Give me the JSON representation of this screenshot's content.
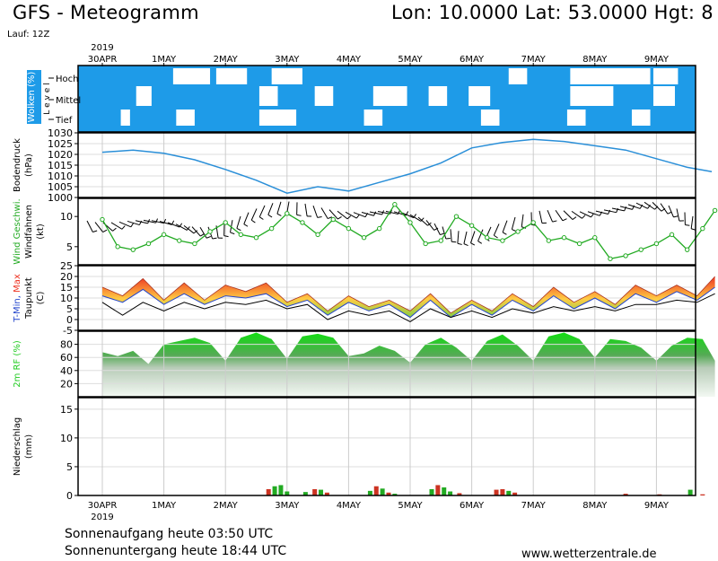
{
  "header": {
    "title": "GFS - Meteogramm",
    "location": "Lon: 10.0000  Lat: 53.0000  Hgt: 8",
    "run": "Lauf: 12Z"
  },
  "colors": {
    "cloud_bg": "#1e9be8",
    "cloud": "#ffffff",
    "pressure_line": "#2a8fd8",
    "wind_speed": "#22aa22",
    "tmax_fill_hot": "#ee3322",
    "tmax_fill_mid": "#ffcc44",
    "tmin_line": "#2244cc",
    "dewpoint_line": "#000000",
    "humidity_fill": "#22cc22",
    "precip_red": "#cc3322",
    "precip_green": "#22aa22"
  },
  "footer": {
    "sunrise": "Sonnenaufgang heute 03:50 UTC",
    "sunset": "Sonnenuntergang heute 18:44 UTC",
    "credit": "www.wetterzentrale.de"
  },
  "chart_data": [
    {
      "type": "heatmap",
      "panel": "clouds",
      "ylabel": "Wolken (%)",
      "ylabel2": "L e v e l",
      "levels": [
        "Hoch",
        "Mittel",
        "Tief"
      ],
      "x_dates": [
        "30APR",
        "1MAY",
        "2MAY",
        "3MAY",
        "4MAY",
        "5MAY",
        "6MAY",
        "7MAY",
        "8MAY",
        "9MAY"
      ],
      "year_label": "2019",
      "clear_gaps": [
        {
          "level": "Hoch",
          "from": 1.15,
          "to": 1.75
        },
        {
          "level": "Hoch",
          "from": 1.85,
          "to": 2.35
        },
        {
          "level": "Hoch",
          "from": 2.75,
          "to": 3.25
        },
        {
          "level": "Hoch",
          "from": 6.6,
          "to": 6.9
        },
        {
          "level": "Hoch",
          "from": 7.6,
          "to": 8.9
        },
        {
          "level": "Hoch",
          "from": 8.95,
          "to": 9.35
        },
        {
          "level": "Mittel",
          "from": 0.55,
          "to": 0.8
        },
        {
          "level": "Mittel",
          "from": 2.55,
          "to": 2.85
        },
        {
          "level": "Mittel",
          "from": 3.45,
          "to": 3.75
        },
        {
          "level": "Mittel",
          "from": 4.4,
          "to": 4.95
        },
        {
          "level": "Mittel",
          "from": 5.3,
          "to": 5.6
        },
        {
          "level": "Mittel",
          "from": 5.95,
          "to": 6.3
        },
        {
          "level": "Mittel",
          "from": 7.6,
          "to": 8.3
        },
        {
          "level": "Mittel",
          "from": 8.95,
          "to": 9.3
        },
        {
          "level": "Tief",
          "from": 0.3,
          "to": 0.45
        },
        {
          "level": "Tief",
          "from": 1.2,
          "to": 1.5
        },
        {
          "level": "Tief",
          "from": 2.55,
          "to": 3.15
        },
        {
          "level": "Tief",
          "from": 4.25,
          "to": 4.55
        },
        {
          "level": "Tief",
          "from": 6.15,
          "to": 6.45
        },
        {
          "level": "Tief",
          "from": 7.55,
          "to": 7.85
        },
        {
          "level": "Tief",
          "from": 8.6,
          "to": 8.9
        }
      ]
    },
    {
      "type": "line",
      "panel": "pressure",
      "ylabel": "Bodendruck",
      "ylabel2": "(hPa)",
      "ylim": [
        1000,
        1030
      ],
      "yticks": [
        1000,
        1005,
        1010,
        1015,
        1020,
        1025,
        1030
      ],
      "grid": true,
      "x": [
        0,
        0.5,
        1,
        1.5,
        2,
        2.5,
        3,
        3.5,
        4,
        4.5,
        5,
        5.5,
        6,
        6.5,
        7,
        7.5,
        8,
        8.5,
        9,
        9.5,
        9.9
      ],
      "values": [
        1021,
        1022,
        1020.5,
        1017.5,
        1013,
        1008,
        1002,
        1005,
        1003,
        1007,
        1011,
        1016,
        1023,
        1025.5,
        1027,
        1026,
        1024,
        1022,
        1018,
        1014,
        1012
      ]
    },
    {
      "type": "line",
      "panel": "wind",
      "ylabel": "Wind Geschwi.",
      "ylabel2": "Windfahnen",
      "ylabel3": "(kt)",
      "ylim": [
        2,
        13
      ],
      "yticks": [
        5,
        10
      ],
      "x": [
        0,
        0.25,
        0.5,
        0.75,
        1,
        1.25,
        1.5,
        1.75,
        2,
        2.25,
        2.5,
        2.75,
        3,
        3.25,
        3.5,
        3.75,
        4,
        4.25,
        4.5,
        4.75,
        5,
        5.25,
        5.5,
        5.75,
        6,
        6.25,
        6.5,
        6.75,
        7,
        7.25,
        7.5,
        7.75,
        8,
        8.25,
        8.5,
        8.75,
        9,
        9.25,
        9.5,
        9.75,
        9.95
      ],
      "values": [
        9.5,
        5,
        4.5,
        5.5,
        7,
        6,
        5.5,
        7.5,
        9,
        7,
        6.5,
        8,
        10.5,
        9,
        7,
        9.5,
        8,
        6.5,
        8,
        12,
        9,
        5.5,
        6,
        10,
        8.5,
        6.5,
        6,
        7.5,
        9,
        6,
        6.5,
        5.5,
        6.5,
        3,
        3.5,
        4.5,
        5.5,
        7,
        4.5,
        8,
        11
      ]
    },
    {
      "type": "area",
      "panel": "temperature",
      "ylabel": "T-Min, Max",
      "ylabel2": "Taupunkt",
      "ylabel3": "(C)",
      "ylim": [
        -5,
        25
      ],
      "yticks": [
        -5,
        0,
        5,
        10,
        15,
        20,
        25
      ],
      "grid": true,
      "x": [
        0,
        0.33,
        0.66,
        1,
        1.33,
        1.66,
        2,
        2.33,
        2.66,
        3,
        3.33,
        3.66,
        4,
        4.33,
        4.66,
        5,
        5.33,
        5.66,
        6,
        6.33,
        6.66,
        7,
        7.33,
        7.66,
        8,
        8.33,
        8.66,
        9,
        9.33,
        9.66,
        9.95
      ],
      "series": [
        {
          "name": "Max",
          "values": [
            15,
            11,
            19,
            9,
            17,
            9,
            16,
            13,
            17,
            8,
            12,
            4,
            11,
            6,
            9,
            4,
            12,
            3,
            9,
            4,
            12,
            6,
            15,
            8,
            13,
            7,
            16,
            11,
            16,
            11,
            20
          ]
        },
        {
          "name": "T-Min",
          "values": [
            11,
            8,
            14,
            7,
            12,
            7,
            11,
            10,
            12,
            6,
            9,
            2,
            8,
            4,
            7,
            1,
            9,
            1,
            7,
            2,
            9,
            4,
            11,
            5,
            10,
            5,
            12,
            8,
            13,
            9,
            15
          ]
        },
        {
          "name": "Taupunkt",
          "values": [
            8,
            2,
            8,
            4,
            8,
            5,
            8,
            7,
            9,
            5,
            7,
            0,
            4,
            2,
            4,
            -1,
            5,
            1,
            4,
            1,
            5,
            3,
            6,
            4,
            6,
            4,
            7,
            7,
            9,
            8,
            12
          ]
        }
      ]
    },
    {
      "type": "area",
      "panel": "humidity",
      "ylabel": "2m RF (%)",
      "ylim": [
        0,
        100
      ],
      "yticks": [
        20,
        40,
        60,
        80
      ],
      "grid": true,
      "x": [
        0,
        0.25,
        0.5,
        0.75,
        1,
        1.25,
        1.5,
        1.75,
        2,
        2.25,
        2.5,
        2.75,
        3,
        3.25,
        3.5,
        3.75,
        4,
        4.25,
        4.5,
        4.75,
        5,
        5.25,
        5.5,
        5.75,
        6,
        6.25,
        6.5,
        6.75,
        7,
        7.25,
        7.5,
        7.75,
        8,
        8.25,
        8.5,
        8.75,
        9,
        9.25,
        9.5,
        9.75,
        9.95
      ],
      "values": [
        68,
        62,
        70,
        50,
        80,
        85,
        90,
        82,
        55,
        90,
        98,
        88,
        58,
        92,
        96,
        90,
        62,
        66,
        78,
        70,
        52,
        80,
        90,
        75,
        55,
        85,
        95,
        78,
        55,
        92,
        98,
        88,
        60,
        88,
        85,
        75,
        55,
        78,
        90,
        88,
        55
      ]
    },
    {
      "type": "bar",
      "panel": "precipitation",
      "ylabel": "Niederschlag",
      "ylabel2": "(mm)",
      "ylim": [
        0,
        17
      ],
      "yticks": [
        0,
        5,
        10,
        15
      ],
      "grid": true,
      "x": [
        2.7,
        2.8,
        2.9,
        3.0,
        3.3,
        3.45,
        3.55,
        3.65,
        4.35,
        4.45,
        4.55,
        4.65,
        4.75,
        5.35,
        5.45,
        5.55,
        5.65,
        5.8,
        6.4,
        6.5,
        6.6,
        6.7,
        8.5,
        9.05,
        9.55,
        9.75
      ],
      "values": [
        1.1,
        1.6,
        1.8,
        0.7,
        0.6,
        1.1,
        1.0,
        0.5,
        0.8,
        1.6,
        1.2,
        0.5,
        0.3,
        1.1,
        1.8,
        1.4,
        0.7,
        0.4,
        1.0,
        1.1,
        0.8,
        0.5,
        0.3,
        0.2,
        1.0,
        0.2
      ],
      "color_keys": [
        "precip_red",
        "precip_green",
        "precip_green",
        "precip_green",
        "precip_green",
        "precip_red",
        "precip_green",
        "precip_red",
        "precip_green",
        "precip_red",
        "precip_green",
        "precip_red",
        "precip_green",
        "precip_green",
        "precip_red",
        "precip_green",
        "precip_green",
        "precip_red",
        "precip_red",
        "precip_red",
        "precip_green",
        "precip_red",
        "precip_red",
        "precip_red",
        "precip_green",
        "precip_red"
      ]
    }
  ]
}
